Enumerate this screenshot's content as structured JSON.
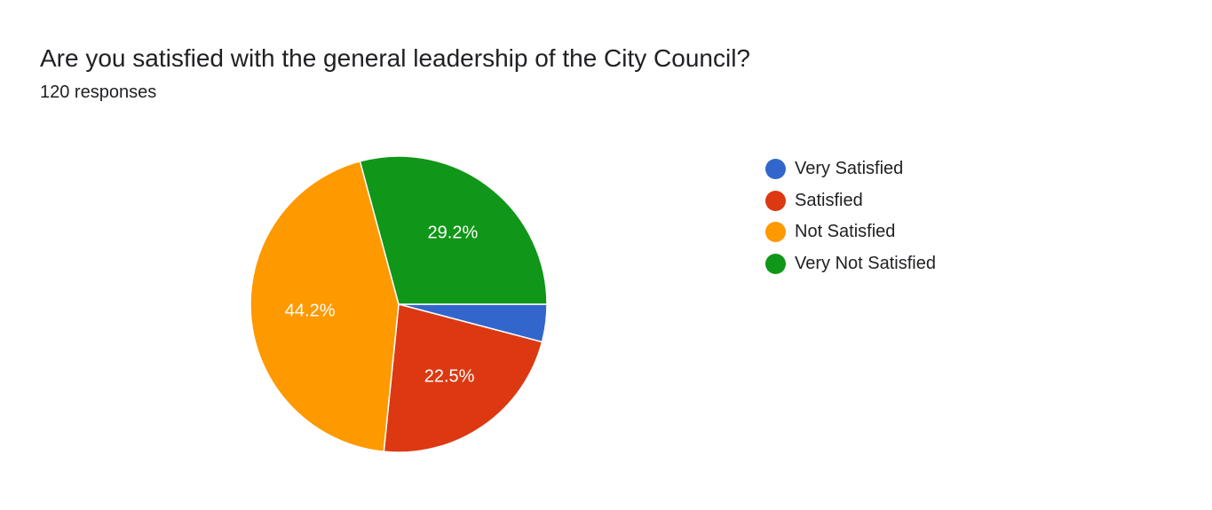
{
  "header": {
    "title": "Are you satisfied with the general leadership of the City Council?",
    "response_count": "120 responses"
  },
  "chart_data": {
    "type": "pie",
    "categories": [
      "Very Satisfied",
      "Satisfied",
      "Not Satisfied",
      "Very Not Satisfied"
    ],
    "values": [
      4.1,
      22.5,
      44.2,
      29.2
    ],
    "labels": [
      "",
      "22.5%",
      "44.2%",
      "29.2%"
    ],
    "colors": [
      "#3366cc",
      "#dc3912",
      "#ff9900",
      "#109618"
    ],
    "legend_position": "right"
  }
}
